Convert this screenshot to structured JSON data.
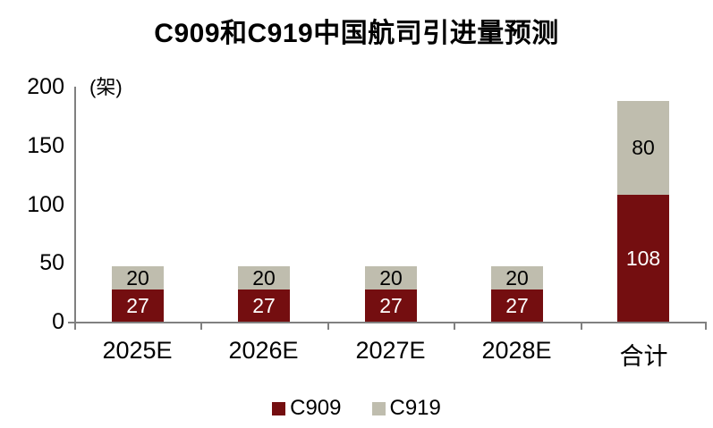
{
  "chart_data": {
    "type": "bar",
    "stacked": true,
    "title": "C909和C919中国航司引进量预测",
    "unit_label": "(架)",
    "categories": [
      "2025E",
      "2026E",
      "2027E",
      "2028E",
      "合计"
    ],
    "series": [
      {
        "name": "C909",
        "color": "#740E10",
        "label_color": "#ffffff",
        "values": [
          27,
          27,
          27,
          27,
          108
        ]
      },
      {
        "name": "C919",
        "color": "#BFBDAE",
        "label_color": "#000000",
        "values": [
          20,
          20,
          20,
          20,
          80
        ]
      }
    ],
    "ylim": [
      0,
      200
    ],
    "yticks": [
      0,
      50,
      100,
      150,
      200
    ],
    "ylabel": "",
    "xlabel": "",
    "grid": false,
    "legend_position": "bottom",
    "axis_color": "#808080",
    "text_color": "#000000",
    "background_color": "#ffffff"
  }
}
